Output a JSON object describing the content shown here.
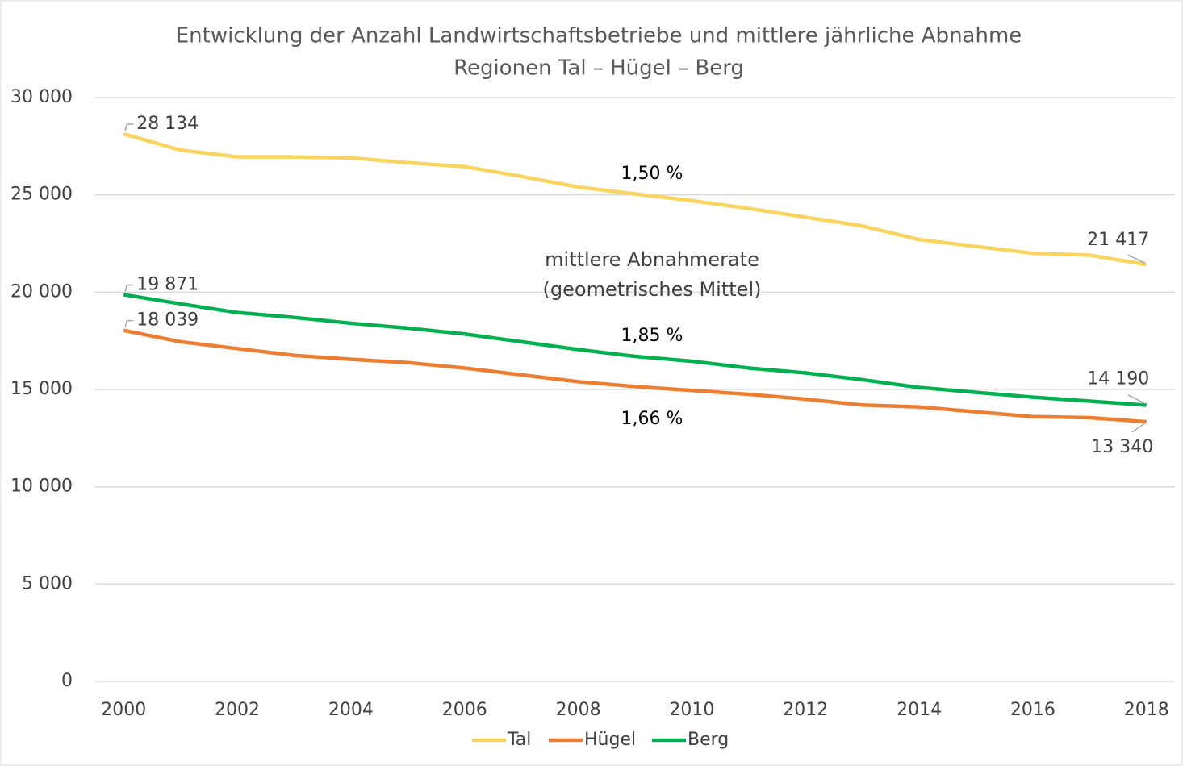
{
  "chart_data": {
    "type": "line",
    "title": "Entwicklung der Anzahl Landwirtschaftsbetriebe und mittlere jährliche Abnahme",
    "subtitle": "Regionen Tal – Hügel – Berg",
    "x": [
      2000,
      2001,
      2002,
      2003,
      2004,
      2005,
      2006,
      2007,
      2008,
      2009,
      2010,
      2011,
      2012,
      2013,
      2014,
      2015,
      2016,
      2017,
      2018
    ],
    "series": [
      {
        "name": "Tal",
        "color": "#f9d461",
        "values": [
          28134,
          27300,
          26950,
          26950,
          26900,
          26650,
          26450,
          25950,
          25400,
          25050,
          24700,
          24300,
          23850,
          23400,
          22700,
          22350,
          22000,
          21900,
          21417
        ],
        "value_labels": [
          "28 134",
          null,
          null,
          null,
          null,
          null,
          null,
          null,
          null,
          null,
          null,
          null,
          null,
          null,
          null,
          null,
          null,
          null,
          "21 417"
        ]
      },
      {
        "name": "Hügel",
        "color": "#ed7d31",
        "values": [
          18039,
          17450,
          17100,
          16750,
          16550,
          16380,
          16100,
          15750,
          15400,
          15150,
          14950,
          14750,
          14500,
          14200,
          14100,
          13850,
          13600,
          13550,
          13340
        ],
        "value_labels": [
          "18 039",
          null,
          null,
          null,
          null,
          null,
          null,
          null,
          null,
          null,
          null,
          null,
          null,
          null,
          null,
          null,
          null,
          null,
          "13 340"
        ]
      },
      {
        "name": "Berg",
        "color": "#00b050",
        "values": [
          19871,
          19400,
          18950,
          18700,
          18400,
          18150,
          17850,
          17450,
          17050,
          16700,
          16450,
          16100,
          15850,
          15500,
          15100,
          14850,
          14600,
          14400,
          14190
        ],
        "value_labels": [
          "19 871",
          null,
          null,
          null,
          null,
          null,
          null,
          null,
          null,
          null,
          null,
          null,
          null,
          null,
          null,
          null,
          null,
          null,
          "14 190"
        ]
      }
    ],
    "annotations": [
      "1,50 %",
      "1,66 %",
      "1,85 %",
      "mittlere Abnahmerate",
      "(geometrisches Mittel)"
    ],
    "xlim": [
      1999.5,
      2018.5
    ],
    "xticks": [
      2000,
      2002,
      2004,
      2006,
      2008,
      2010,
      2012,
      2014,
      2016,
      2018
    ],
    "ylim": [
      0,
      30000
    ],
    "yticks": [
      0,
      {
        "value": 5000,
        "label": "5 000"
      },
      {
        "value": 10000,
        "label": "10 000"
      },
      {
        "value": 15000,
        "label": "15 000"
      },
      {
        "value": 20000,
        "label": "20 000"
      },
      {
        "value": 25000,
        "label": "25 000"
      },
      {
        "value": 30000,
        "label": "30 000"
      }
    ],
    "grid": true,
    "legend": "bottom"
  }
}
